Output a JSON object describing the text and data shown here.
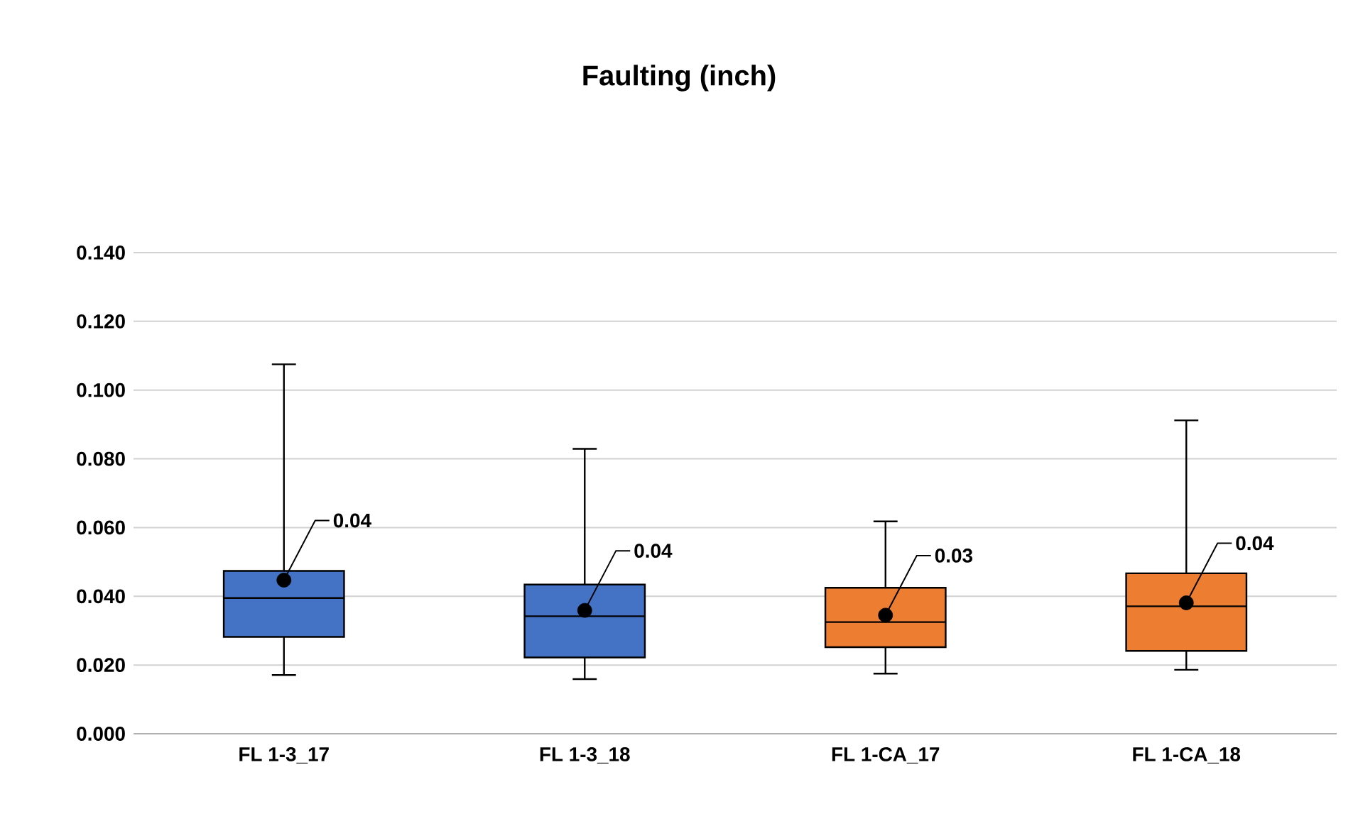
{
  "chart_data": {
    "type": "box",
    "title": "Faulting (inch)",
    "categories": [
      "FL 1-3_17",
      "FL 1-3_18",
      "FL 1-CA_17",
      "FL 1-CA_18"
    ],
    "boxes": [
      {
        "low": 0.0171,
        "q1": 0.0282,
        "median": 0.0395,
        "q3": 0.0474,
        "high": 0.1075,
        "mean": 0.0447
      },
      {
        "low": 0.0159,
        "q1": 0.0222,
        "median": 0.0342,
        "q3": 0.0434,
        "high": 0.0829,
        "mean": 0.0359
      },
      {
        "low": 0.0175,
        "q1": 0.0252,
        "median": 0.0325,
        "q3": 0.0425,
        "high": 0.0618,
        "mean": 0.0345
      },
      {
        "low": 0.0186,
        "q1": 0.0241,
        "median": 0.0371,
        "q3": 0.0467,
        "high": 0.0912,
        "mean": 0.0381
      }
    ],
    "colors": [
      "#4472c4",
      "#4472c4",
      "#ed7d31",
      "#ed7d31"
    ],
    "ylim": [
      0,
      0.14
    ],
    "yticks": [
      {
        "value": 0,
        "label": "0.000"
      },
      {
        "value": 0.02,
        "label": "0.020"
      },
      {
        "value": 0.04,
        "label": "0.040"
      },
      {
        "value": 0.06,
        "label": "0.060"
      },
      {
        "value": 0.08,
        "label": "0.080"
      },
      {
        "value": 0.1,
        "label": "0.100"
      },
      {
        "value": 0.12,
        "label": "0.120"
      },
      {
        "value": 0.14,
        "label": "0.140"
      }
    ],
    "grid": "y",
    "annotations": [
      "0.04",
      {
        "text": "0.04",
        "x": "FL 1-3_18",
        "y": 0.0359
      },
      {
        "text": "0.03",
        "x": "FL 1-CA_17",
        "y": 0.0345
      },
      {
        "text": "0.04",
        "x": "FL 1-CA_18",
        "y": 0.0381
      }
    ]
  }
}
